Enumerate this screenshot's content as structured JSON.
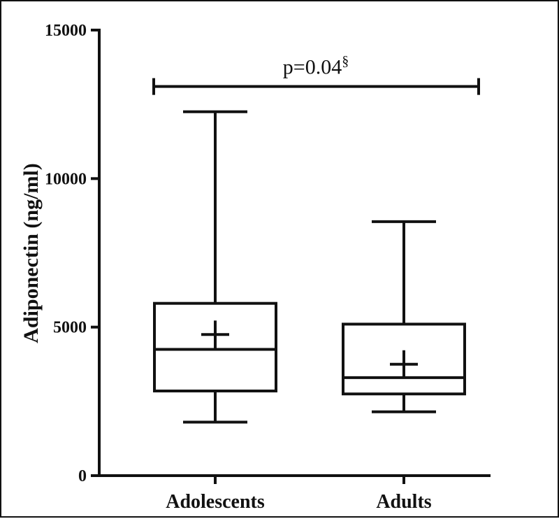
{
  "chart_data": {
    "type": "box",
    "ylabel": "Adiponectin (ng/ml)",
    "ylim": [
      0,
      15000
    ],
    "yticks": [
      0,
      5000,
      10000,
      15000
    ],
    "ytick_labels": [
      "0",
      "5000",
      "10000",
      "15000"
    ],
    "grid": false,
    "categories": [
      "Adolescents",
      "Adults"
    ],
    "boxes": [
      {
        "category": "Adolescents",
        "whisker_low": 1800,
        "q1": 2850,
        "median": 4250,
        "q3": 5800,
        "whisker_high": 12250,
        "mean": 4750
      },
      {
        "category": "Adults",
        "whisker_low": 2150,
        "q1": 2750,
        "median": 3300,
        "q3": 5100,
        "whisker_high": 8550,
        "mean": 3750
      }
    ],
    "annotations": [
      {
        "text": "p=0.04",
        "superscript": "§",
        "from": "Adolescents",
        "to": "Adults",
        "y": 13100
      }
    ]
  }
}
